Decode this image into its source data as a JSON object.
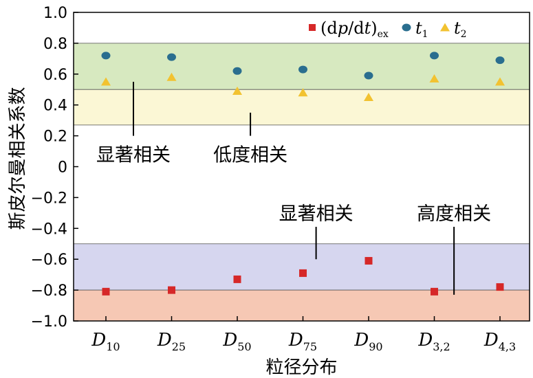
{
  "chart_data": {
    "type": "scatter",
    "xlabel": "粒径分布",
    "ylabel": "斯皮尔曼相关系数",
    "ylim": [
      -1.0,
      1.0
    ],
    "yticks": [
      "1.0",
      "0.8",
      "0.6",
      "0.4",
      "0.2",
      "0",
      "−0.2",
      "−0.4",
      "−0.6",
      "−0.8",
      "−1.0"
    ],
    "categories": [
      {
        "main": "D",
        "sub": "10"
      },
      {
        "main": "D",
        "sub": "25"
      },
      {
        "main": "D",
        "sub": "50"
      },
      {
        "main": "D",
        "sub": "75"
      },
      {
        "main": "D",
        "sub": "90"
      },
      {
        "main": "D",
        "sub": "3,2"
      },
      {
        "main": "D",
        "sub": "4,3"
      }
    ],
    "series": [
      {
        "name": "(dp/dt)ex",
        "legend_main": "(d",
        "legend_p": "p",
        "legend_mid": "/d",
        "legend_t": "t",
        "legend_close": ")",
        "legend_sub": "ex",
        "marker": "square",
        "color": "#d62828",
        "values": [
          -0.81,
          -0.8,
          -0.73,
          -0.69,
          -0.61,
          -0.81,
          -0.78
        ]
      },
      {
        "name": "t1",
        "legend_main": "t",
        "legend_sub": "1",
        "marker": "circle",
        "color": "#2a6e8f",
        "values": [
          0.72,
          0.71,
          0.62,
          0.63,
          0.59,
          0.72,
          0.69
        ]
      },
      {
        "name": "t2",
        "legend_main": "t",
        "legend_sub": "2",
        "marker": "triangle",
        "color": "#f2c230",
        "values": [
          0.55,
          0.58,
          0.49,
          0.48,
          0.45,
          0.57,
          0.55
        ]
      }
    ],
    "bands": [
      {
        "from": 0.5,
        "to": 0.8,
        "color": "#d7e9c0"
      },
      {
        "from": 0.27,
        "to": 0.5,
        "color": "#fbf7d5"
      },
      {
        "from": -0.8,
        "to": -0.5,
        "color": "#d6d6ef"
      },
      {
        "from": -1.0,
        "to": -0.8,
        "color": "#f6c8b4"
      }
    ],
    "annotations": [
      {
        "text": "显著相关",
        "x_cat": 0,
        "line_from": 0.55,
        "line_to": 0.2
      },
      {
        "text": "低度相关",
        "x_cat": 2.2,
        "line_from": 0.35,
        "line_to": 0.2
      },
      {
        "text": "显著相关",
        "x_cat": 3.2,
        "line_from": -0.39,
        "line_to": -0.6
      },
      {
        "text": "高度相关",
        "x_cat": 5.3,
        "line_from": -0.39,
        "line_to": -0.83
      }
    ],
    "legend_position": "top-right",
    "grid": false
  }
}
